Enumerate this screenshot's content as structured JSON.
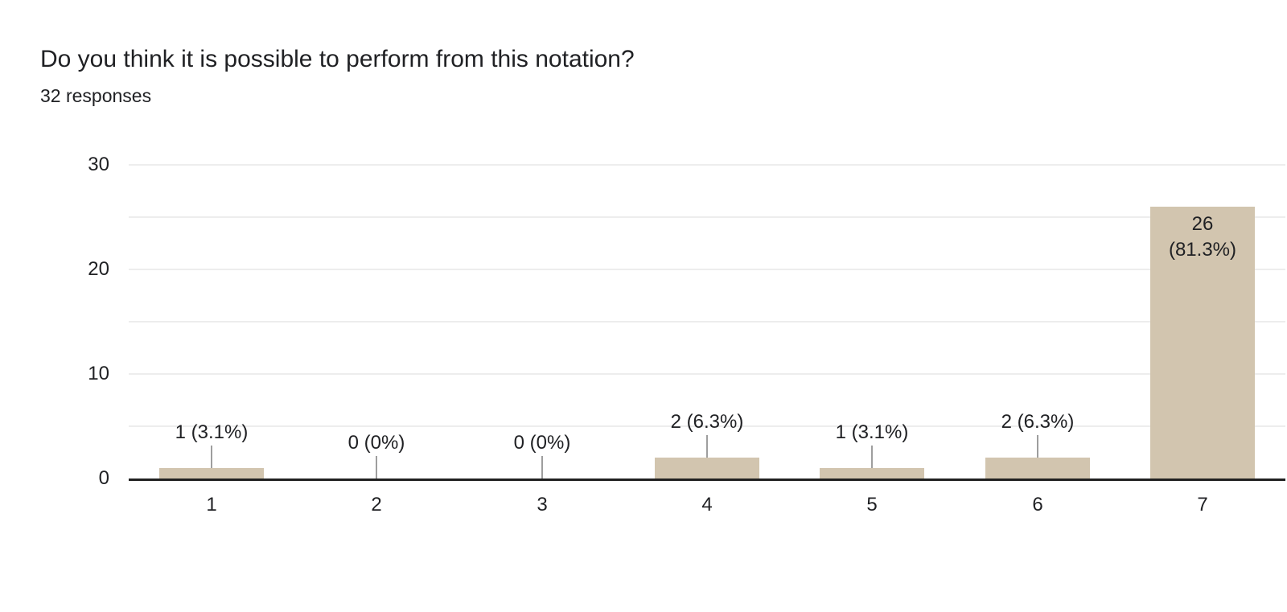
{
  "header": {
    "title": "Do you think it is possible to perform from this notation?",
    "responses_count": "32 responses"
  },
  "chart_data": {
    "type": "bar",
    "title": "Do you think it is possible to perform from this notation?",
    "subtitle": "32 responses",
    "categories": [
      "1",
      "2",
      "3",
      "4",
      "5",
      "6",
      "7"
    ],
    "values": [
      1,
      0,
      0,
      2,
      1,
      2,
      26
    ],
    "bar_labels": [
      "1 (3.1%)",
      "0 (0%)",
      "0 (0%)",
      "2 (6.3%)",
      "1 (3.1%)",
      "2 (6.3%)",
      "26 (81.3%)"
    ],
    "inside_labels": {
      "6": [
        "26",
        "(81.3%)"
      ]
    },
    "xlabel": "",
    "ylabel": "",
    "ylim": [
      0,
      30
    ],
    "yticks": [
      0,
      10,
      20,
      30
    ],
    "grid_step": 5,
    "grid": true,
    "legend": "none",
    "colors": {
      "bar": "#d2c5af",
      "grid": "#ededed",
      "axis": "#212121",
      "text": "#202124",
      "leader": "#9e9e9e"
    }
  }
}
